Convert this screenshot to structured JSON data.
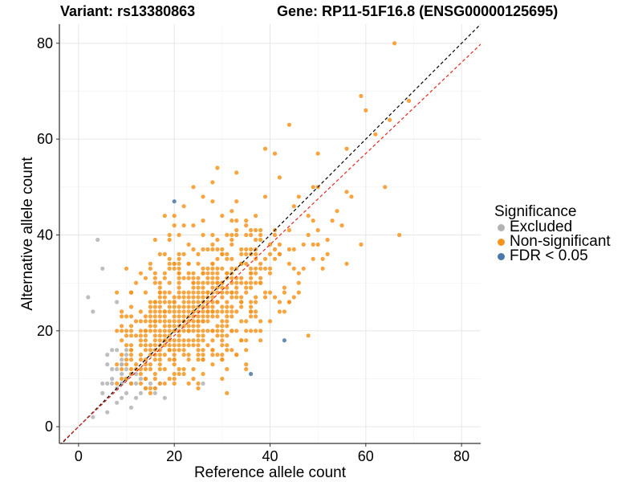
{
  "chart_data": {
    "type": "scatter",
    "title_left": "Variant: rs13380863",
    "title_right": "Gene: RP11-51F16.8 (ENSG00000125695)",
    "xlabel": "Reference allele count",
    "ylabel": "Alternative allele count",
    "xlim": [
      -4,
      84
    ],
    "ylim": [
      -3.5,
      84
    ],
    "x_ticks": [
      0,
      20,
      40,
      60,
      80
    ],
    "y_ticks": [
      0,
      20,
      40,
      60,
      80
    ],
    "grid": true,
    "legend": {
      "title": "Significance",
      "position": "right",
      "entries": [
        {
          "label": "Excluded",
          "color": "#b3b3b3"
        },
        {
          "label": "Non-significant",
          "color": "#f7941d"
        },
        {
          "label": "FDR < 0.05",
          "color": "#4a78a8"
        }
      ]
    },
    "reference_lines": [
      {
        "name": "identity",
        "slope": 1.0,
        "intercept": 0,
        "color": "#000000",
        "style": "dashed"
      },
      {
        "name": "fit",
        "slope": 0.95,
        "intercept": 0,
        "color": "#e8251f",
        "style": "dashed"
      }
    ],
    "series": [
      {
        "name": "Excluded",
        "color": "#b3b3b3",
        "points": [
          [
            2,
            27
          ],
          [
            3,
            24
          ],
          [
            4,
            39
          ],
          [
            5,
            33
          ],
          [
            3,
            2
          ],
          [
            5,
            7
          ],
          [
            6,
            3
          ],
          [
            5,
            9
          ],
          [
            6,
            9
          ],
          [
            7,
            10
          ],
          [
            7,
            12
          ],
          [
            8,
            26
          ],
          [
            8,
            8
          ],
          [
            8,
            5
          ],
          [
            9,
            6
          ],
          [
            9,
            9
          ],
          [
            9,
            11
          ],
          [
            9,
            13
          ],
          [
            9,
            14
          ],
          [
            10,
            10
          ],
          [
            10,
            12
          ],
          [
            10,
            16
          ],
          [
            10,
            7
          ],
          [
            11,
            9
          ],
          [
            11,
            11
          ],
          [
            11,
            4
          ],
          [
            12,
            9
          ],
          [
            12,
            6
          ],
          [
            12,
            11
          ],
          [
            13,
            7
          ],
          [
            13,
            10
          ],
          [
            14,
            8
          ],
          [
            15,
            9
          ],
          [
            16,
            7
          ],
          [
            16,
            8
          ],
          [
            17,
            9
          ],
          [
            18,
            6
          ],
          [
            26,
            9
          ],
          [
            6,
            15
          ],
          [
            7,
            16
          ],
          [
            8,
            16
          ],
          [
            9,
            13
          ],
          [
            10,
            15
          ],
          [
            6,
            13
          ],
          [
            7,
            9
          ],
          [
            8,
            12
          ]
        ]
      },
      {
        "name": "Non-significant",
        "color": "#f7941d",
        "cluster": {
          "x_range": [
            8,
            52
          ],
          "y_range": [
            7,
            45
          ],
          "center": [
            24,
            24
          ],
          "density": "high"
        },
        "points": [
          [
            66,
            80
          ],
          [
            59,
            69
          ],
          [
            60,
            66
          ],
          [
            69,
            68
          ],
          [
            65,
            64
          ],
          [
            62,
            61
          ],
          [
            44,
            63
          ],
          [
            56,
            58
          ],
          [
            39,
            58
          ],
          [
            41,
            57
          ],
          [
            50,
            57
          ],
          [
            42,
            52
          ],
          [
            49,
            50
          ],
          [
            50,
            50
          ],
          [
            46,
            48
          ],
          [
            57,
            48
          ],
          [
            64,
            50
          ],
          [
            54,
            45
          ],
          [
            53,
            43
          ],
          [
            55,
            42
          ],
          [
            56,
            49
          ],
          [
            67,
            40
          ],
          [
            48,
            40
          ],
          [
            59,
            38
          ],
          [
            52,
            36
          ],
          [
            56,
            34
          ],
          [
            51,
            33
          ],
          [
            49,
            38
          ],
          [
            47,
            38
          ],
          [
            29,
            54
          ],
          [
            33,
            53
          ],
          [
            24,
            50
          ],
          [
            28,
            51
          ],
          [
            32,
            45
          ],
          [
            33,
            47
          ],
          [
            26,
            48
          ],
          [
            28,
            47
          ],
          [
            35,
            43
          ],
          [
            30,
            44
          ],
          [
            37,
            44
          ],
          [
            39,
            48
          ],
          [
            45,
            46
          ],
          [
            48,
            44
          ],
          [
            38,
            41
          ],
          [
            32,
            39
          ],
          [
            34,
            37
          ],
          [
            36,
            36
          ],
          [
            40,
            38
          ],
          [
            42,
            36
          ],
          [
            44,
            34
          ],
          [
            46,
            32
          ],
          [
            22,
            46
          ],
          [
            20,
            42
          ],
          [
            21,
            40
          ],
          [
            18,
            44
          ],
          [
            23,
            38
          ],
          [
            17,
            36
          ],
          [
            15,
            34
          ],
          [
            13,
            32
          ],
          [
            12,
            30
          ],
          [
            11,
            28
          ],
          [
            14,
            28
          ],
          [
            16,
            26
          ],
          [
            12,
            22
          ],
          [
            10,
            20
          ],
          [
            9,
            18
          ],
          [
            11,
            16
          ],
          [
            10,
            14
          ],
          [
            12,
            12
          ],
          [
            14,
            10
          ],
          [
            15,
            7
          ],
          [
            20,
            9
          ],
          [
            25,
            9
          ],
          [
            30,
            10
          ],
          [
            35,
            12
          ],
          [
            33,
            15
          ],
          [
            38,
            18
          ],
          [
            36,
            20
          ],
          [
            40,
            22
          ],
          [
            42,
            24
          ],
          [
            44,
            26
          ],
          [
            46,
            28
          ],
          [
            40,
            28
          ],
          [
            38,
            30
          ],
          [
            36,
            32
          ],
          [
            34,
            34
          ],
          [
            32,
            35
          ],
          [
            30,
            36
          ],
          [
            28,
            38
          ],
          [
            26,
            40
          ],
          [
            24,
            42
          ],
          [
            22,
            36
          ],
          [
            20,
            34
          ],
          [
            18,
            32
          ],
          [
            16,
            30
          ],
          [
            25,
            30
          ],
          [
            24,
            28
          ],
          [
            26,
            26
          ],
          [
            28,
            24
          ],
          [
            30,
            22
          ],
          [
            32,
            20
          ],
          [
            34,
            18
          ],
          [
            22,
            22
          ],
          [
            20,
            20
          ],
          [
            18,
            18
          ],
          [
            16,
            16
          ],
          [
            14,
            14
          ],
          [
            24,
            24
          ],
          [
            26,
            22
          ],
          [
            28,
            20
          ],
          [
            30,
            18
          ],
          [
            32,
            16
          ],
          [
            20,
            26
          ],
          [
            22,
            28
          ],
          [
            24,
            30
          ],
          [
            26,
            32
          ],
          [
            28,
            34
          ],
          [
            30,
            30
          ],
          [
            32,
            28
          ],
          [
            34,
            26
          ],
          [
            36,
            24
          ],
          [
            38,
            22
          ],
          [
            18,
            24
          ],
          [
            16,
            22
          ],
          [
            14,
            20
          ],
          [
            20,
            14
          ],
          [
            22,
            12
          ],
          [
            24,
            12
          ],
          [
            26,
            14
          ],
          [
            28,
            16
          ],
          [
            30,
            14
          ],
          [
            19,
            16
          ],
          [
            21,
            18
          ],
          [
            23,
            20
          ],
          [
            25,
            22
          ],
          [
            27,
            24
          ],
          [
            29,
            26
          ],
          [
            31,
            28
          ],
          [
            33,
            30
          ],
          [
            35,
            28
          ],
          [
            37,
            26
          ],
          [
            17,
            28
          ],
          [
            19,
            30
          ],
          [
            21,
            32
          ],
          [
            23,
            34
          ],
          [
            25,
            36
          ],
          [
            27,
            28
          ],
          [
            29,
            30
          ],
          [
            31,
            32
          ],
          [
            33,
            24
          ],
          [
            35,
            22
          ]
        ]
      },
      {
        "name": "FDR < 0.05",
        "color": "#4a78a8",
        "points": [
          [
            20,
            47
          ],
          [
            43,
            18
          ],
          [
            36,
            11
          ]
        ]
      }
    ]
  }
}
